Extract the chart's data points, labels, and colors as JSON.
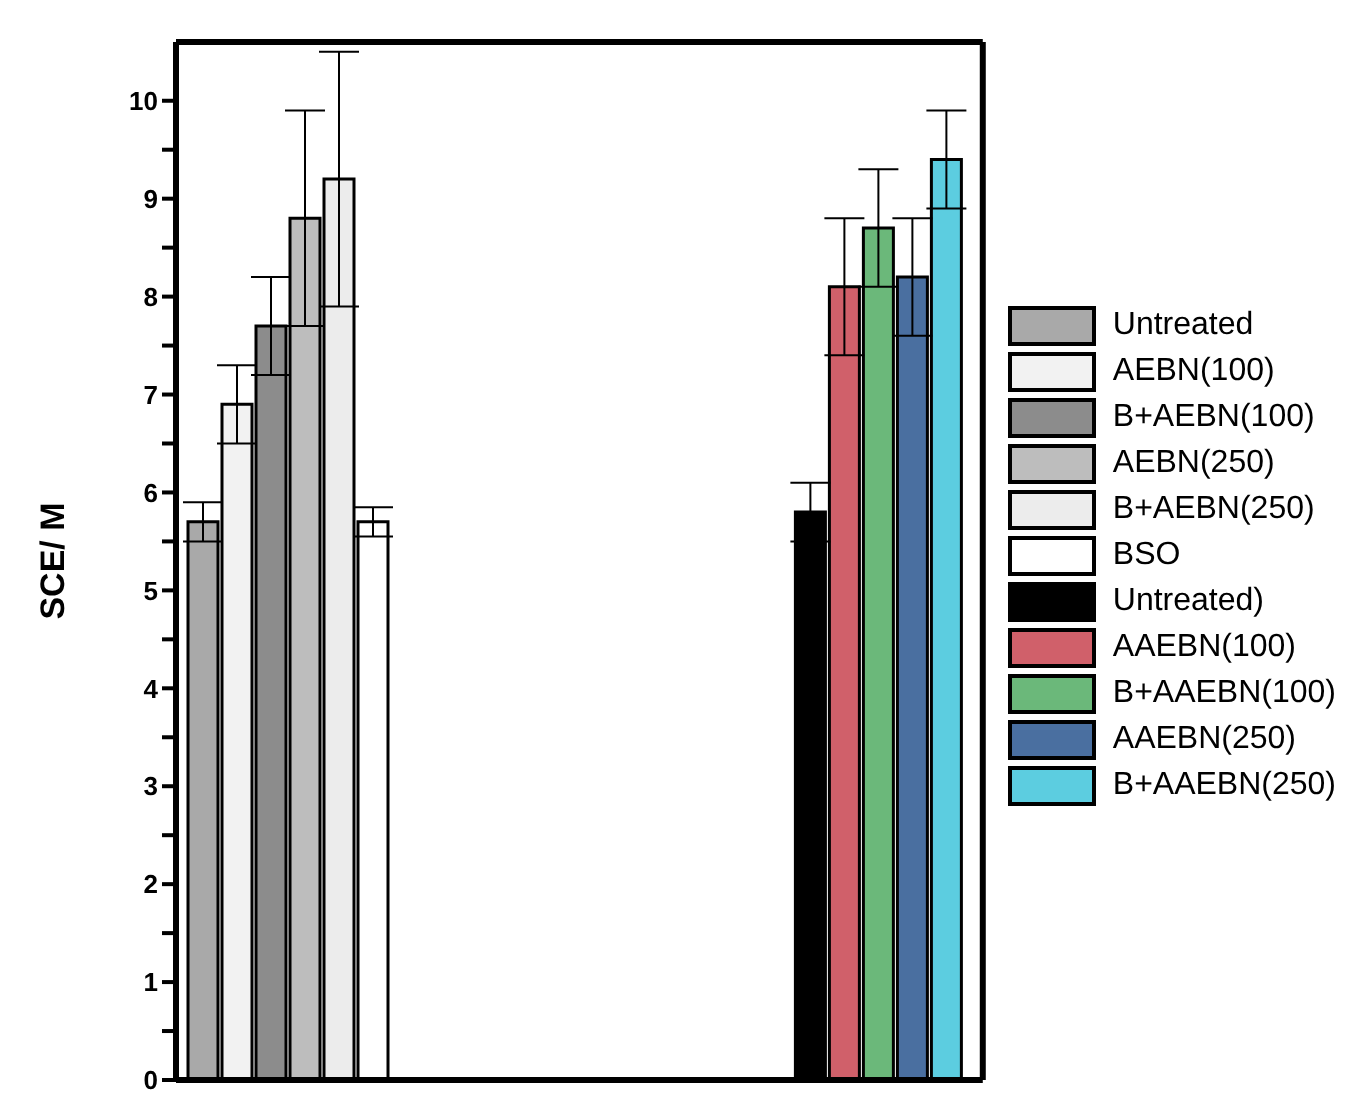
{
  "chart_data": {
    "type": "bar",
    "ylabel": "SCE/ M",
    "categories": [
      null,
      null
    ],
    "ylim": [
      0,
      10.6
    ],
    "yticks": [
      0,
      {
        "value": 0.5,
        "label": null
      },
      1,
      {
        "value": 1.5,
        "label": null
      },
      2,
      {
        "value": 2.5,
        "label": null
      },
      3,
      {
        "value": 3.5,
        "label": null
      },
      4,
      {
        "value": 4.5,
        "label": null
      },
      5,
      {
        "value": 5.5,
        "label": null
      },
      6,
      {
        "value": 6.5,
        "label": null
      },
      7,
      {
        "value": 7.5,
        "label": null
      },
      8,
      {
        "value": 8.5,
        "label": null
      },
      9,
      {
        "value": 9.5,
        "label": null
      },
      10
    ],
    "legend": "right",
    "grid": false,
    "series": [
      {
        "name": "Untreated",
        "color": "#a9a9a9",
        "values": [
          5.7,
          null
        ],
        "errors": [
          0.2,
          null
        ]
      },
      {
        "name": "AEBN(100)",
        "color": "#f2f2f2",
        "values": [
          6.9,
          null
        ],
        "errors": [
          0.4,
          null
        ]
      },
      {
        "name": "B+AEBN(100)",
        "color": "#8c8c8c",
        "values": [
          7.7,
          null
        ],
        "errors": [
          0.5,
          null
        ]
      },
      {
        "name": "AEBN(250)",
        "color": "#bdbdbd",
        "values": [
          8.8,
          null
        ],
        "errors": [
          1.1,
          null
        ]
      },
      {
        "name": "B+AEBN(250)",
        "color": "#ececec",
        "values": [
          9.2,
          null
        ],
        "errors": [
          1.3,
          null
        ]
      },
      {
        "name": "BSO",
        "color": "#ffffff",
        "values": [
          5.7,
          null
        ],
        "errors": [
          0.15,
          null
        ]
      },
      {
        "name": "Untreated)",
        "color": "#000000",
        "values": [
          null,
          5.8
        ],
        "errors": [
          null,
          0.3
        ]
      },
      {
        "name": "AAEBN(100)",
        "color": "#d0606a",
        "values": [
          null,
          8.1
        ],
        "errors": [
          null,
          0.7
        ]
      },
      {
        "name": "B+AAEBN(100)",
        "color": "#6bb87a",
        "values": [
          null,
          8.7
        ],
        "errors": [
          null,
          0.6
        ]
      },
      {
        "name": "AAEBN(250)",
        "color": "#4a6fa0",
        "values": [
          null,
          8.2
        ],
        "errors": [
          null,
          0.6
        ]
      },
      {
        "name": "B+AAEBN(250)",
        "color": "#5ccde0",
        "values": [
          null,
          9.4
        ],
        "errors": [
          null,
          0.5
        ]
      }
    ]
  }
}
